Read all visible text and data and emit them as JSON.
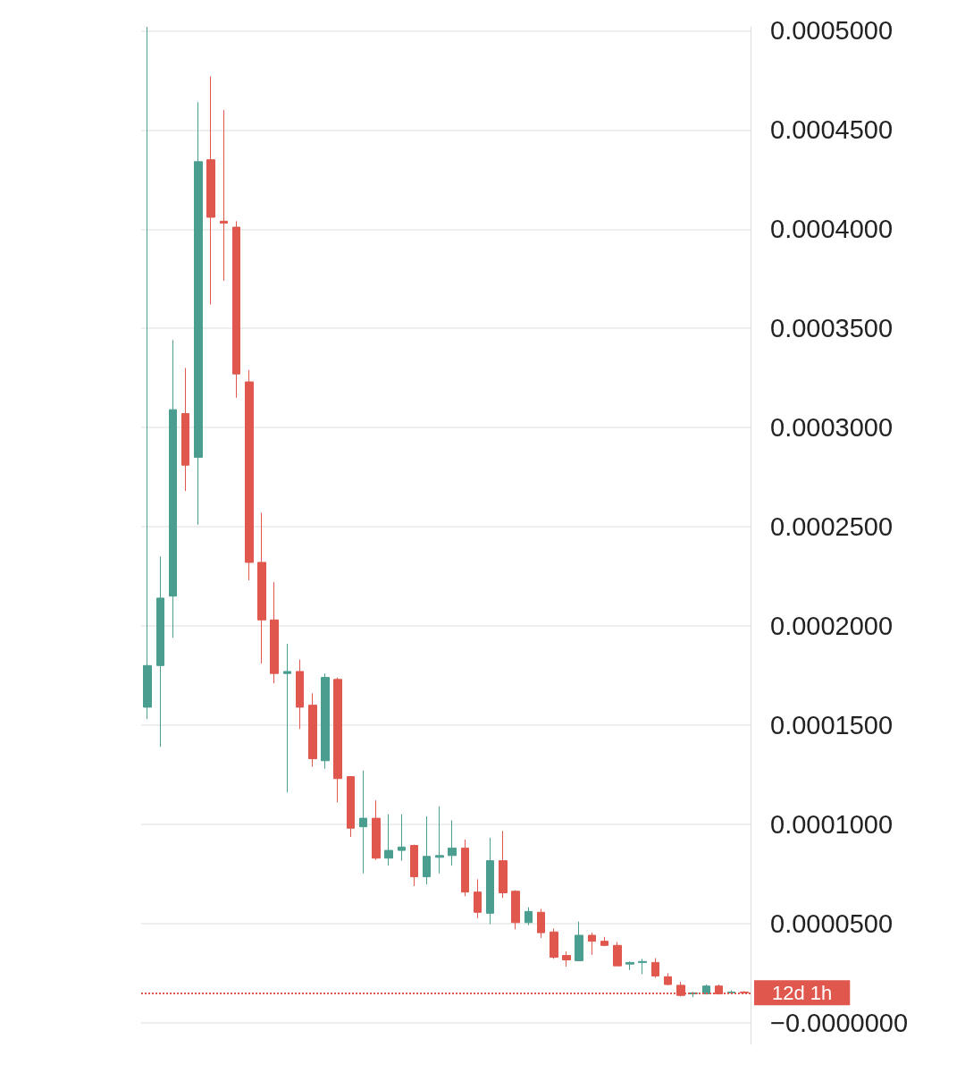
{
  "chart_data": {
    "type": "candlestick",
    "categories": [
      null,
      null,
      null,
      null,
      null,
      null,
      null,
      null,
      null,
      null,
      null,
      null,
      null,
      null,
      null,
      null,
      null,
      null,
      null,
      null,
      null,
      null,
      null,
      null,
      null,
      null,
      null,
      null,
      null,
      null,
      null,
      null,
      null,
      null,
      null,
      null,
      null,
      null,
      null,
      null,
      null,
      null,
      null,
      null,
      null,
      null,
      null,
      null
    ],
    "ohlc": [
      [
        0.000159,
        0.000502,
        0.000153,
        0.00018
      ],
      [
        0.00018,
        0.000235,
        0.000139,
        0.000214
      ],
      [
        0.000215,
        0.000344,
        0.000194,
        0.000309
      ],
      [
        0.000307,
        0.00033,
        0.000268,
        0.000281
      ],
      [
        0.000285,
        0.000464,
        0.000251,
        0.000434
      ],
      [
        0.000435,
        0.000477,
        0.000362,
        0.000406
      ],
      [
        0.000404,
        0.00046,
        0.000374,
        0.000403
      ],
      [
        0.000401,
        0.000404,
        0.000315,
        0.000327
      ],
      [
        0.000323,
        0.000329,
        0.000223,
        0.000232
      ],
      [
        0.000232,
        0.000257,
        0.000181,
        0.000203
      ],
      [
        0.000203,
        0.000222,
        0.000171,
        0.000176
      ],
      [
        0.000176,
        0.000191,
        0.000116,
        0.000177
      ],
      [
        0.000177,
        0.000183,
        0.000148,
        0.000159
      ],
      [
        0.00016,
        0.000166,
        0.000129,
        0.000133
      ],
      [
        0.000132,
        0.000176,
        0.000128,
        0.000174
      ],
      [
        0.000173,
        0.000174,
        0.000111,
        0.000123
      ],
      [
        0.000124,
        0.000124,
        9.36e-05,
        9.8e-05
      ],
      [
        9.87e-05,
        0.000127,
        7.52e-05,
        0.000103
      ],
      [
        0.000103,
        0.000112,
        8.2e-05,
        8.29e-05
      ],
      [
        8.29e-05,
        0.000105,
        7.91e-05,
        8.68e-05
      ],
      [
        8.68e-05,
        0.000105,
        8.16e-05,
        8.85e-05
      ],
      [
        8.93e-05,
        8.97e-05,
        6.88e-05,
        7.35e-05
      ],
      [
        7.35e-05,
        0.000104,
        6.97e-05,
        8.38e-05
      ],
      [
        8.33e-05,
        0.000109,
        7.52e-05,
        8.42e-05
      ],
      [
        8.42e-05,
        0.000102,
        7.91e-05,
        8.8e-05
      ],
      [
        8.8e-05,
        9.23e-05,
        6.37e-05,
        6.58e-05
      ],
      [
        6.58e-05,
        7.22e-05,
        5.26e-05,
        5.56e-05
      ],
      [
        5.51e-05,
        9.32e-05,
        4.96e-05,
        8.16e-05
      ],
      [
        8.16e-05,
        9.66e-05,
        6.28e-05,
        6.54e-05
      ],
      [
        6.62e-05,
        6.67e-05,
        4.7e-05,
        5.04e-05
      ],
      [
        5.04e-05,
        5.81e-05,
        4.91e-05,
        5.6e-05
      ],
      [
        5.56e-05,
        5.73e-05,
        4.27e-05,
        4.53e-05
      ],
      [
        4.57e-05,
        4.74e-05,
        3.21e-05,
        3.29e-05
      ],
      [
        3.38e-05,
        3.59e-05,
        2.82e-05,
        3.16e-05
      ],
      [
        3.12e-05,
        5.09e-05,
        3.12e-05,
        4.4e-05
      ],
      [
        4.4e-05,
        4.53e-05,
        3.42e-05,
        4.1e-05
      ],
      [
        4.1e-05,
        4.32e-05,
        3.85e-05,
        3.89e-05
      ],
      [
        3.89e-05,
        4.06e-05,
        2.86e-05,
        2.86e-05
      ],
      [
        2.95e-05,
        3.08e-05,
        2.65e-05,
        3.03e-05
      ],
      [
        3.03e-05,
        3.21e-05,
        2.44e-05,
        3.08e-05
      ],
      [
        3.03e-05,
        3.25e-05,
        2.26e-05,
        2.35e-05
      ],
      [
        2.31e-05,
        2.48e-05,
        1.88e-05,
        1.92e-05
      ],
      [
        1.88e-05,
        2.05e-05,
        1.32e-05,
        1.37e-05
      ],
      [
        1.45e-05,
        1.54e-05,
        1.28e-05,
        1.5e-05
      ],
      [
        1.45e-05,
        1.92e-05,
        1.41e-05,
        1.84e-05
      ],
      [
        1.84e-05,
        1.92e-05,
        1.41e-05,
        1.45e-05
      ],
      [
        1.5e-05,
        1.62e-05,
        1.45e-05,
        1.54e-05
      ],
      [
        1.54e-05,
        1.58e-05,
        1.47e-05,
        1.5e-05
      ]
    ],
    "colors": [
      "#4a9e8f",
      "#4a9e8f",
      "#4a9e8f",
      "#e0574d",
      "#4a9e8f",
      "#e0574d",
      "#e0574d",
      "#e0574d",
      "#e0574d",
      "#e0574d",
      "#e0574d",
      "#4a9e8f",
      "#e0574d",
      "#e0574d",
      "#4a9e8f",
      "#e0574d",
      "#e0574d",
      "#4a9e8f",
      "#e0574d",
      "#4a9e8f",
      "#4a9e8f",
      "#e0574d",
      "#4a9e8f",
      "#4a9e8f",
      "#4a9e8f",
      "#e0574d",
      "#e0574d",
      "#4a9e8f",
      "#e0574d",
      "#e0574d",
      "#4a9e8f",
      "#e0574d",
      "#e0574d",
      "#e0574d",
      "#4a9e8f",
      "#e0574d",
      "#e0574d",
      "#e0574d",
      "#4a9e8f",
      "#4a9e8f",
      "#e0574d",
      "#e0574d",
      "#e0574d",
      "#4a9e8f",
      "#4a9e8f",
      "#e0574d",
      "#4a9e8f",
      "#e0574d"
    ],
    "ylim": [
      -1.1e-05,
      0.000502
    ],
    "yticks": [
      {
        "value": 0,
        "label": "−0.0000000"
      },
      {
        "value": 5e-05,
        "label": "0.0000500"
      },
      {
        "value": 0.0001,
        "label": "0.0001000"
      },
      {
        "value": 0.00015,
        "label": "0.0001500"
      },
      {
        "value": 0.0002,
        "label": "0.0002000"
      },
      {
        "value": 0.00025,
        "label": "0.0002500"
      },
      {
        "value": 0.0003,
        "label": "0.0003000"
      },
      {
        "value": 0.00035,
        "label": "0.0003500"
      },
      {
        "value": 0.0004,
        "label": "0.0004000"
      },
      {
        "value": 0.00045,
        "label": "0.0004500"
      },
      {
        "value": 0.0005,
        "label": "0.0005000"
      }
    ],
    "ref_lines": [
      {
        "axis": "y",
        "value": 1.5e-05,
        "label": "12d 1h",
        "color": "#e0574d",
        "line_style": "dotted"
      }
    ],
    "grid": "y",
    "tick_labels": "y"
  }
}
